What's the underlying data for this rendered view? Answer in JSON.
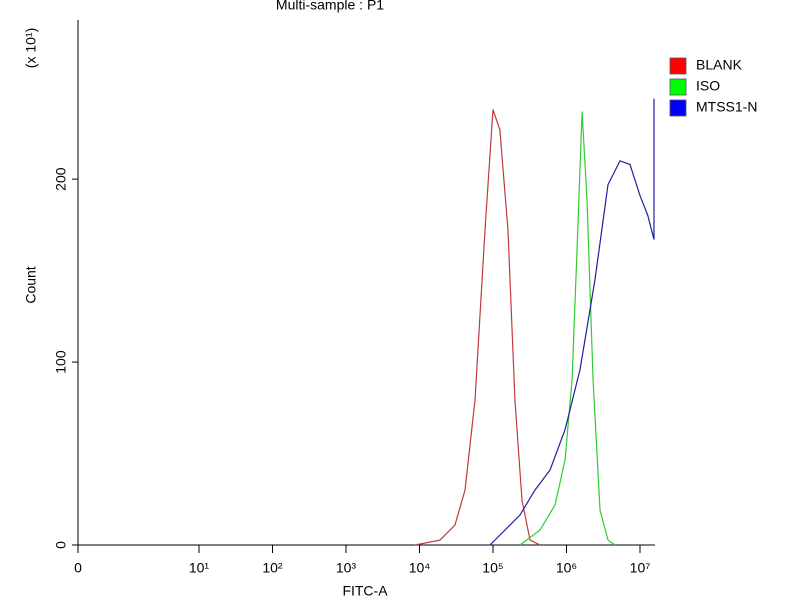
{
  "chart_data": {
    "type": "line",
    "title": "Multi-sample : P1",
    "x_label": "FITC-A",
    "y_label": "Count",
    "y_multiplier": "(x 10¹)",
    "xscale": "log",
    "xlim": [
      0.226,
      16000000
    ],
    "xticks": [
      {
        "value": 0.226,
        "label": "0"
      },
      {
        "value": 10,
        "label": "10¹"
      },
      {
        "value": 100,
        "label": "10²"
      },
      {
        "value": 1000,
        "label": "10³"
      },
      {
        "value": 10000,
        "label": "10⁴"
      },
      {
        "value": 100000,
        "label": "10⁵"
      },
      {
        "value": 1000000,
        "label": "10⁶"
      },
      {
        "value": 10000000,
        "label": "10⁷"
      }
    ],
    "ylim": [
      0,
      287
    ],
    "yticks": [
      0,
      100,
      200
    ],
    "legend": "right",
    "series": [
      {
        "name": "BLANK",
        "color": "#ff0000",
        "line_color": "#c0393b",
        "x": [
          8700,
          19000,
          30400,
          41600,
          56900,
          77800,
          100000,
          124000,
          160000,
          199000,
          248000,
          319000,
          436000
        ],
        "values": [
          0,
          2.7,
          10.9,
          30,
          79,
          172,
          238,
          227,
          172,
          79,
          24.6,
          2.7,
          0
        ]
      },
      {
        "name": "ISO",
        "color": "#00ff00",
        "line_color": "#33cc33",
        "x": [
          233000,
          436000,
          698000,
          955000,
          1190000,
          1390000,
          1630000,
          1900000,
          2300000,
          2860000,
          3670000,
          4570000
        ],
        "values": [
          0,
          8.2,
          21.9,
          46.4,
          90,
          161,
          237,
          189,
          90,
          19,
          2.7,
          0
        ]
      },
      {
        "name": "MTSS1-N",
        "color": "#0000ff",
        "line_color": "#1f1fa0",
        "x": [
          91000,
          146000,
          233000,
          372000,
          597000,
          955000,
          1530000,
          2440000,
          3670000,
          5350000,
          7310000,
          10000000,
          12800000,
          15500000,
          15500000
        ],
        "values": [
          0,
          8.2,
          16.4,
          30,
          41,
          63,
          96,
          145,
          197,
          210,
          208,
          191,
          180,
          167,
          244
        ]
      }
    ]
  }
}
